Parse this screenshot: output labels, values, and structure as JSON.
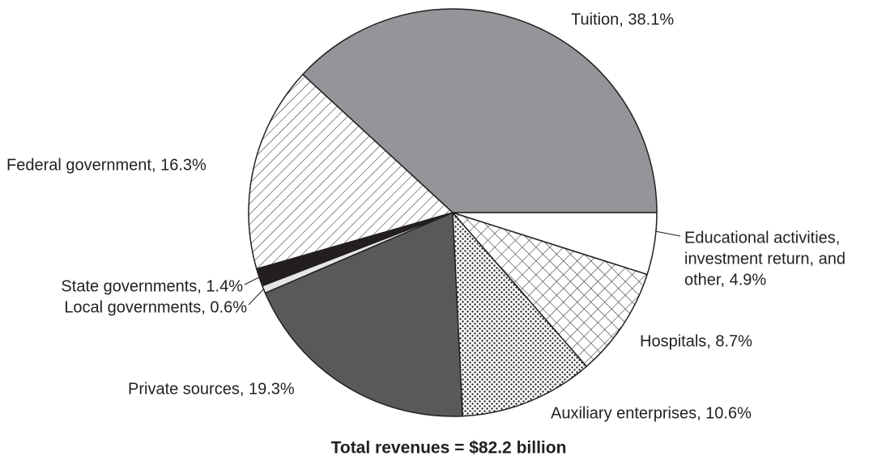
{
  "chart_data": {
    "type": "pie",
    "categories": [
      [
        "Tuition, 38.1%"
      ],
      [
        "Federal government, 16.3%"
      ],
      [
        "State governments, 1.4%"
      ],
      [
        "Local governments, 0.6%"
      ],
      [
        "Private sources, 19.3%"
      ],
      [
        "Auxiliary enterprises, 10.6%"
      ],
      [
        "Hospitals, 8.7%"
      ],
      [
        "Educational activities,",
        "investment return, and",
        "other, 4.9%"
      ]
    ],
    "values": [
      38.1,
      16.3,
      1.4,
      0.6,
      19.3,
      10.6,
      8.7,
      4.9
    ],
    "colors": [
      "#939598",
      "hatch",
      "#231f20",
      "#e6e6e6",
      "#58595b",
      "dots",
      "crosshatch",
      "#ffffff"
    ],
    "caption": "Total revenues = $82.2 billion"
  }
}
